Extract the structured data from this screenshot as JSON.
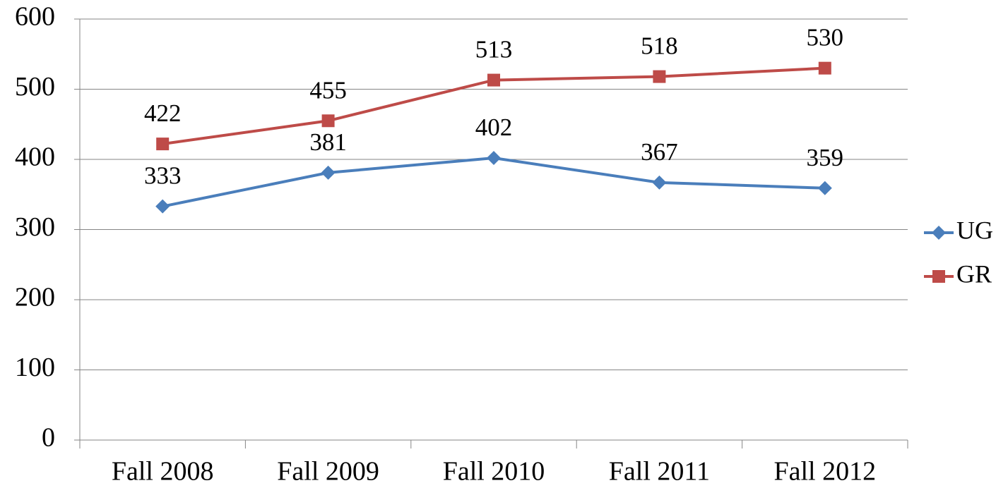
{
  "chart_data": {
    "type": "line",
    "categories": [
      "Fall 2008",
      "Fall 2009",
      "Fall 2010",
      "Fall 2011",
      "Fall 2012"
    ],
    "series": [
      {
        "name": "UG",
        "color": "#4a7ebb",
        "marker": "diamond",
        "values": [
          333,
          381,
          402,
          367,
          359
        ]
      },
      {
        "name": "GR",
        "color": "#be4b48",
        "marker": "square",
        "values": [
          422,
          455,
          513,
          518,
          530
        ]
      }
    ],
    "ylim": [
      0,
      600
    ],
    "yticks": [
      0,
      100,
      200,
      300,
      400,
      500,
      600
    ],
    "grid": true,
    "legend": "right",
    "data_labels": true
  }
}
